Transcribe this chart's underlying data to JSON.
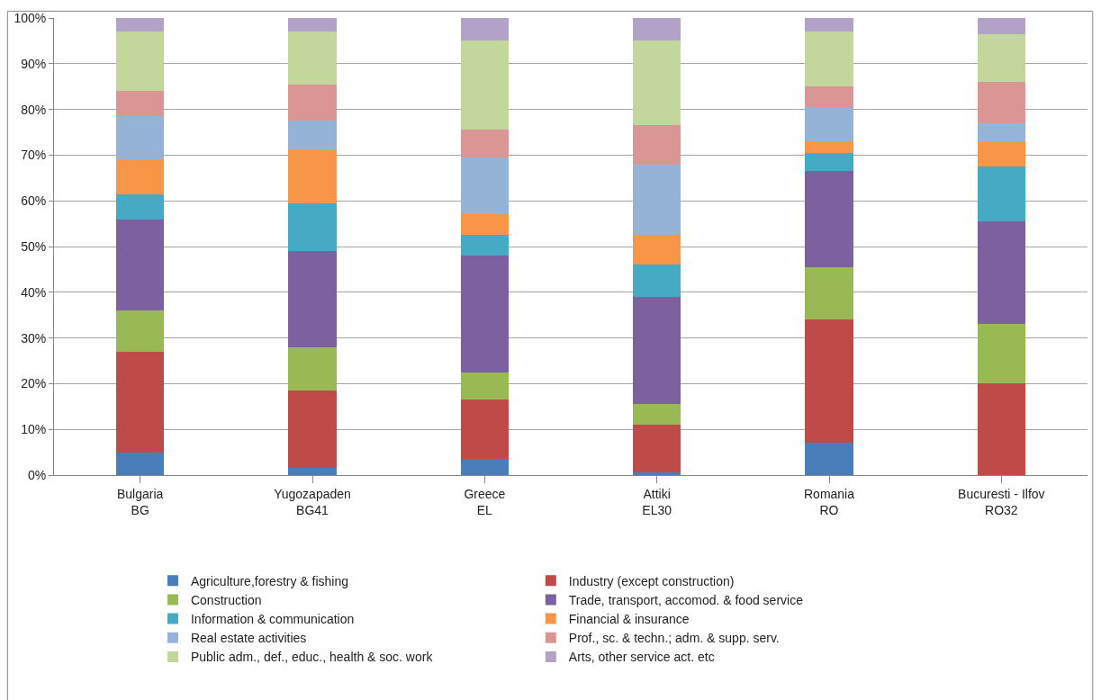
{
  "chart_data": {
    "type": "bar",
    "stacked": true,
    "categories": [
      "Bulgaria\nBG",
      "Yugozapaden\nBG41",
      "Greece\nEL",
      "Attiki\nEL30",
      "Romania\nRO",
      "Bucuresti - Ilfov\nRO32"
    ],
    "ylim": [
      0,
      100
    ],
    "yticks": [
      {
        "value": 0,
        "label": "0%"
      },
      {
        "value": 10,
        "label": "10%"
      },
      {
        "value": 20,
        "label": "20%"
      },
      {
        "value": 30,
        "label": "30%"
      },
      {
        "value": 40,
        "label": "40%"
      },
      {
        "value": 50,
        "label": "50%"
      },
      {
        "value": 60,
        "label": "60%"
      },
      {
        "value": 70,
        "label": "70%"
      },
      {
        "value": 80,
        "label": "80%"
      },
      {
        "value": 90,
        "label": "90%"
      },
      {
        "value": 100,
        "label": "100%"
      }
    ],
    "grid": "y",
    "legend": "bottom",
    "series": [
      {
        "name": "Agriculture,forestry & fishing",
        "color": "#4a7ebb",
        "values": [
          5,
          1.5,
          3.5,
          0.5,
          7,
          0
        ]
      },
      {
        "name": "Industry (except construction)",
        "color": "#be4b48",
        "values": [
          22,
          17,
          13,
          10.5,
          27,
          20
        ]
      },
      {
        "name": "Construction",
        "color": "#98b954",
        "values": [
          9,
          9.5,
          6,
          4.5,
          11.5,
          13
        ]
      },
      {
        "name": "Trade, transport, accomod. & food service",
        "color": "#7d60a0",
        "values": [
          20,
          21,
          25.5,
          23.5,
          21,
          22.5
        ]
      },
      {
        "name": "Information & communication",
        "color": "#46aac5",
        "values": [
          5.5,
          10.5,
          4.5,
          7,
          4,
          12
        ]
      },
      {
        "name": "Financial & insurance",
        "color": "#f79646",
        "values": [
          7.5,
          11.5,
          4.5,
          6.5,
          2.5,
          5.5
        ]
      },
      {
        "name": "Real estate activities",
        "color": "#95b3d7",
        "values": [
          9.5,
          6.5,
          12.5,
          15.5,
          7.5,
          4
        ]
      },
      {
        "name": "Prof., sc. & techn.; adm. & supp. serv.",
        "color": "#d99694",
        "values": [
          5.5,
          8,
          6,
          8.5,
          4.5,
          9
        ]
      },
      {
        "name": "Public adm., def., educ., health & soc. work",
        "color": "#c3d69b",
        "values": [
          13,
          11.5,
          19.5,
          18.5,
          12,
          10.5
        ]
      },
      {
        "name": "Arts, other service act. etc",
        "color": "#b3a2c7",
        "values": [
          3,
          3,
          5,
          5,
          3,
          3.5
        ]
      }
    ]
  }
}
